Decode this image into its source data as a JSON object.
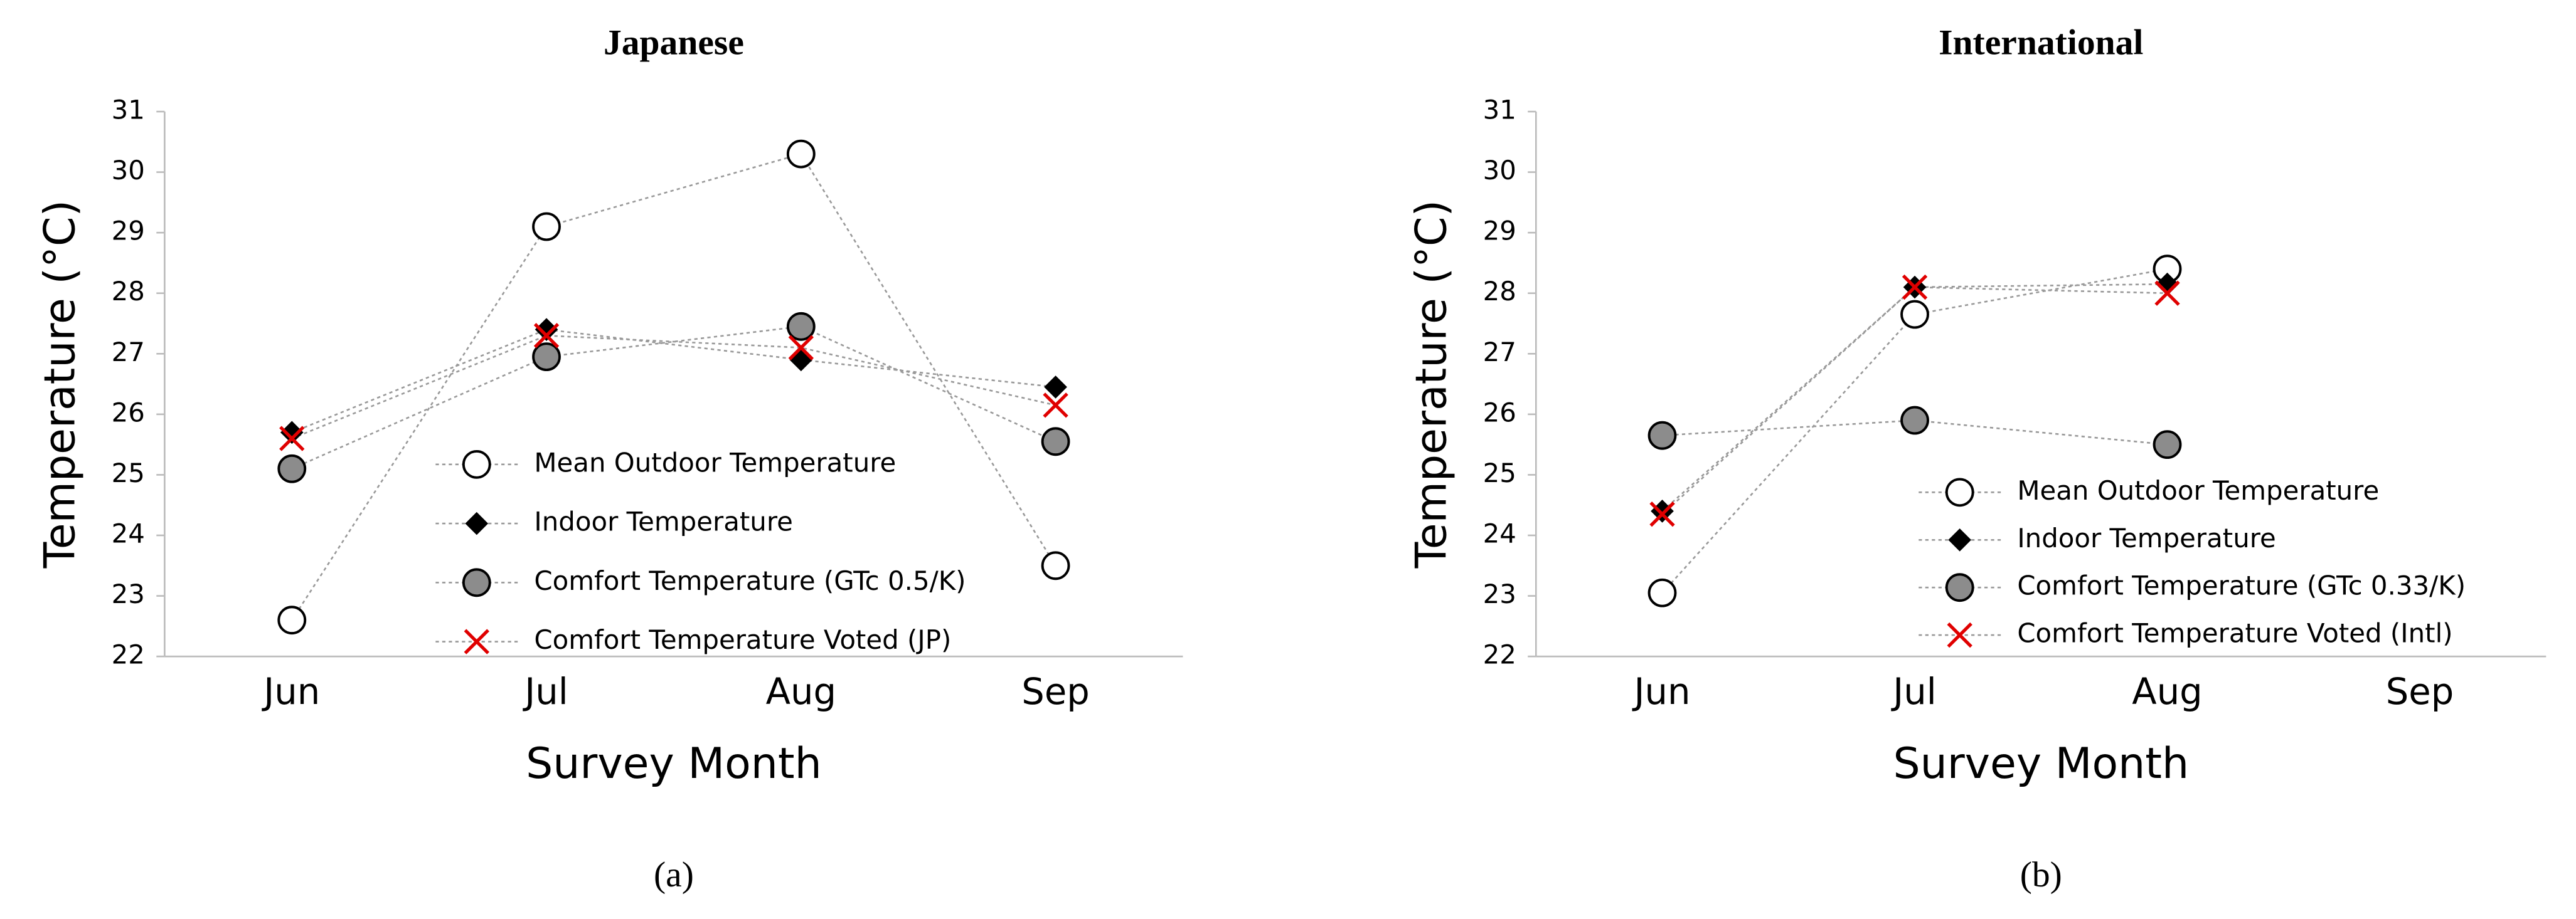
{
  "chart_data": [
    {
      "type": "line",
      "title": "Japanese",
      "caption": "(a)",
      "x_label": "Survey Month",
      "y_label": "Temperature (°C)",
      "categories": [
        "Jun",
        "Jul",
        "Aug",
        "Sep"
      ],
      "series": [
        {
          "name": "Mean Outdoor Temperature",
          "color": "#ffffff",
          "marker": "circle",
          "values": [
            22.6,
            29.1,
            30.3,
            23.5
          ]
        },
        {
          "name": "Indoor Temperature",
          "color": "#000000",
          "marker": "diamond",
          "values": [
            25.7,
            27.4,
            26.9,
            26.45
          ]
        },
        {
          "name": "Comfort Temperature (GTc 0.5/K)",
          "color": "#8c8c8c",
          "marker": "circle",
          "values": [
            25.1,
            26.95,
            27.45,
            25.55
          ]
        },
        {
          "name": "Comfort Temperature Voted (JP)",
          "color": "#e00000",
          "marker": "x",
          "values": [
            25.6,
            27.3,
            27.1,
            26.15
          ]
        }
      ],
      "ylim": [
        22,
        31
      ],
      "yticks": [
        22,
        23,
        24,
        25,
        26,
        27,
        28,
        29,
        30,
        31
      ],
      "grid": false
    },
    {
      "type": "line",
      "title": "International",
      "caption": "(b)",
      "x_label": "Survey Month",
      "y_label": "Temperature (°C)",
      "categories": [
        "Jun",
        "Jul",
        "Aug",
        "Sep"
      ],
      "series": [
        {
          "name": "Mean Outdoor Temperature",
          "color": "#ffffff",
          "marker": "circle",
          "values": [
            23.05,
            27.65,
            28.4,
            null
          ]
        },
        {
          "name": "Indoor Temperature",
          "color": "#000000",
          "marker": "diamond",
          "values": [
            24.4,
            28.1,
            28.15,
            null
          ]
        },
        {
          "name": "Comfort Temperature (GTc 0.33/K)",
          "color": "#8c8c8c",
          "marker": "circle",
          "values": [
            25.65,
            25.9,
            25.5,
            null
          ]
        },
        {
          "name": "Comfort Temperature Voted (Intl)",
          "color": "#e00000",
          "marker": "x",
          "values": [
            24.35,
            28.1,
            28.0,
            null
          ]
        }
      ],
      "ylim": [
        22,
        31
      ],
      "yticks": [
        22,
        23,
        24,
        25,
        26,
        27,
        28,
        29,
        30,
        31
      ],
      "grid": false
    }
  ]
}
